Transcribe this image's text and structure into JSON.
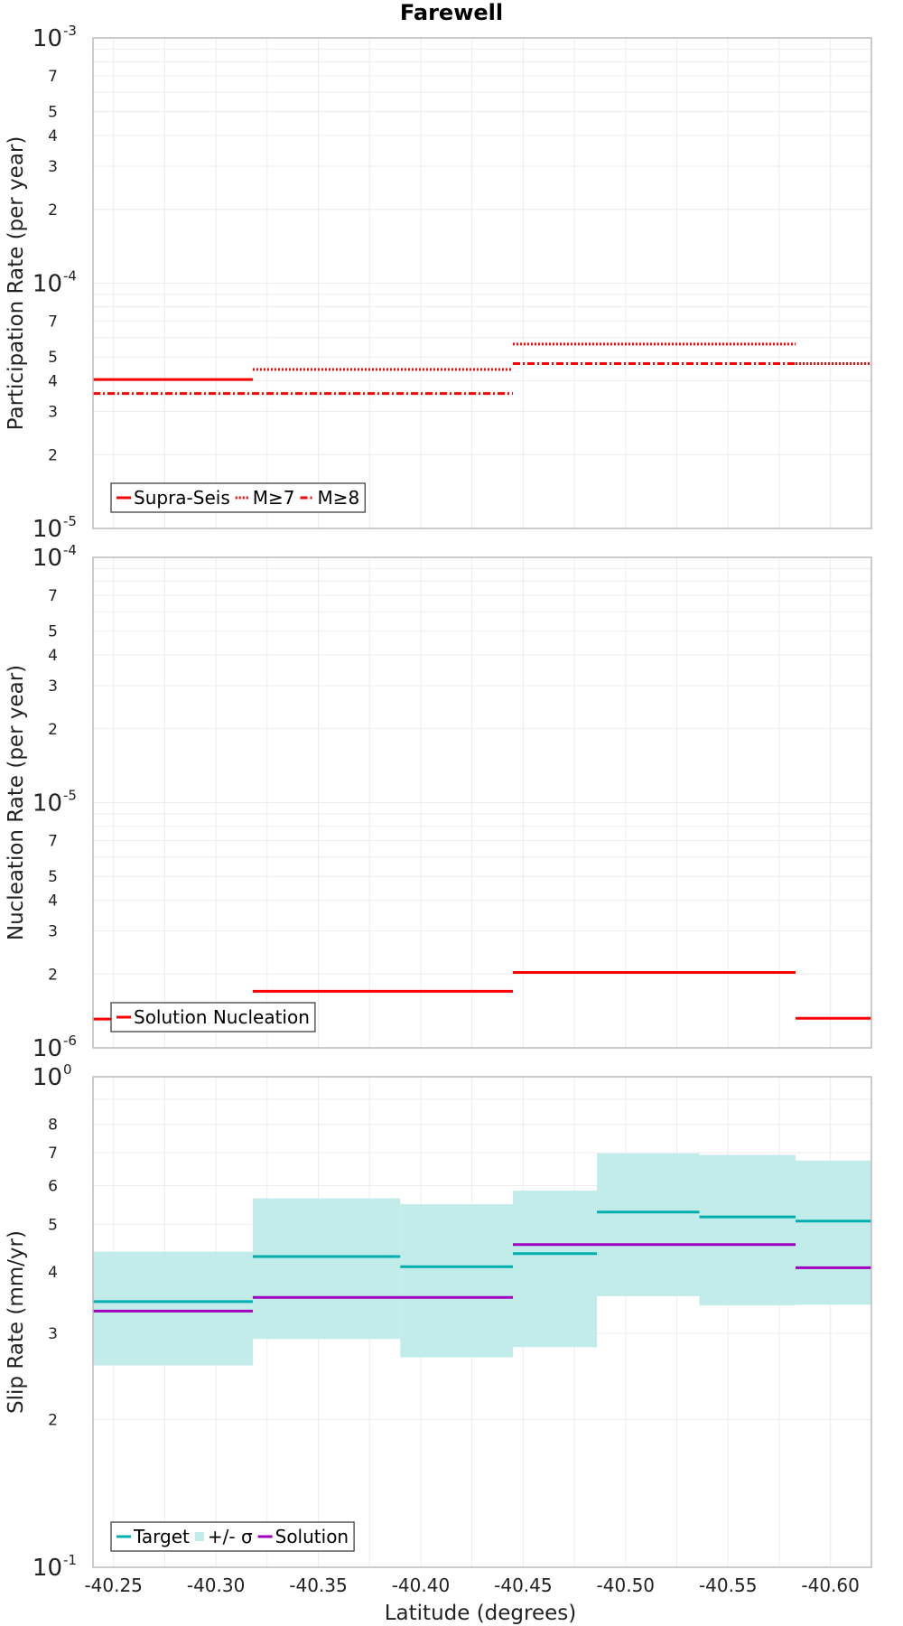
{
  "title": "Farewell",
  "xlabel": "Latitude (degrees)",
  "x_ticks": [
    "-40.25",
    "-40.30",
    "-40.35",
    "-40.40",
    "-40.45",
    "-40.50",
    "-40.55",
    "-40.60"
  ],
  "colors": {
    "supra_seis": "#ff0000",
    "target": "#00b0b0",
    "sigma_band": "#c2ecea",
    "solution_slip": "#a000c0",
    "grid": "#ececec",
    "frame": "#bbbbbb"
  },
  "chart_data": [
    {
      "type": "line",
      "ylabel": "Participation Rate (per year)",
      "yscale": "log",
      "xlim": [
        -40.24,
        -40.62
      ],
      "ylim": [
        1e-05,
        0.001
      ],
      "y_major_ticks": [
        {
          "base": "10",
          "exp": "-5"
        },
        {
          "base": "10",
          "exp": "-4"
        },
        {
          "base": "10",
          "exp": "-3"
        }
      ],
      "y_minor_labels": [
        "2",
        "3",
        "4",
        "5",
        "7"
      ],
      "grid": true,
      "legend_position": "bottom-left",
      "legend": [
        "Supra-Seis",
        "M≥7",
        "M≥8"
      ],
      "series": [
        {
          "name": "Supra-Seis",
          "style": "solid",
          "segments": [
            [
              -40.24,
              -40.318,
              4.05e-05
            ]
          ]
        },
        {
          "name": "M≥7",
          "style": "dotted",
          "segments": [
            [
              -40.318,
              -40.445,
              4.45e-05
            ],
            [
              -40.445,
              -40.583,
              5.65e-05
            ],
            [
              -40.583,
              -40.62,
              4.7e-05
            ]
          ]
        },
        {
          "name": "M≥8",
          "style": "dashdot",
          "segments": [
            [
              -40.24,
              -40.445,
              3.55e-05
            ],
            [
              -40.445,
              -40.583,
              4.7e-05
            ]
          ]
        }
      ]
    },
    {
      "type": "line",
      "ylabel": "Nucleation Rate (per year)",
      "yscale": "log",
      "xlim": [
        -40.24,
        -40.62
      ],
      "ylim": [
        1e-06,
        0.0001
      ],
      "y_major_ticks": [
        {
          "base": "10",
          "exp": "-6"
        },
        {
          "base": "10",
          "exp": "-5"
        },
        {
          "base": "10",
          "exp": "-4"
        }
      ],
      "y_minor_labels": [
        "2",
        "3",
        "4",
        "5",
        "7"
      ],
      "grid": true,
      "legend_position": "bottom-left",
      "legend": [
        "Solution Nucleation"
      ],
      "series": [
        {
          "name": "Solution Nucleation",
          "style": "solid",
          "segments": [
            [
              -40.24,
              -40.318,
              1.31e-06
            ],
            [
              -40.318,
              -40.445,
              1.7e-06
            ],
            [
              -40.445,
              -40.583,
              2.03e-06
            ],
            [
              -40.583,
              -40.62,
              1.32e-06
            ]
          ]
        }
      ]
    },
    {
      "type": "line",
      "ylabel": "Slip Rate (mm/yr)",
      "yscale": "log",
      "xlim": [
        -40.24,
        -40.62
      ],
      "ylim": [
        0.1,
        1
      ],
      "y_major_ticks": [
        {
          "base": "10",
          "exp": "-1"
        },
        {
          "base": "10",
          "exp": "0"
        }
      ],
      "y_minor_labels": [
        "2",
        "3",
        "4",
        "5",
        "6",
        "7",
        "8"
      ],
      "grid": true,
      "legend_position": "bottom-left",
      "legend": [
        "Target",
        "+/- σ",
        "Solution"
      ],
      "band": {
        "name": "+/- σ",
        "segments": [
          [
            -40.24,
            -40.318,
            0.258,
            0.44
          ],
          [
            -40.318,
            -40.39,
            0.292,
            0.565
          ],
          [
            -40.39,
            -40.445,
            0.268,
            0.55
          ],
          [
            -40.445,
            -40.486,
            0.281,
            0.586
          ],
          [
            -40.486,
            -40.536,
            0.357,
            0.698
          ],
          [
            -40.536,
            -40.583,
            0.342,
            0.693
          ],
          [
            -40.583,
            -40.62,
            0.343,
            0.675
          ]
        ]
      },
      "series": [
        {
          "name": "Target",
          "style": "solid",
          "segments": [
            [
              -40.24,
              -40.318,
              0.348
            ],
            [
              -40.318,
              -40.39,
              0.43
            ],
            [
              -40.39,
              -40.445,
              0.41
            ],
            [
              -40.445,
              -40.486,
              0.436
            ],
            [
              -40.486,
              -40.536,
              0.53
            ],
            [
              -40.536,
              -40.583,
              0.518
            ],
            [
              -40.583,
              -40.62,
              0.508
            ]
          ]
        },
        {
          "name": "Solution",
          "style": "solid",
          "segments": [
            [
              -40.24,
              -40.318,
              0.333
            ],
            [
              -40.318,
              -40.445,
              0.355
            ],
            [
              -40.445,
              -40.583,
              0.455
            ],
            [
              -40.583,
              -40.62,
              0.408
            ]
          ]
        }
      ]
    }
  ]
}
